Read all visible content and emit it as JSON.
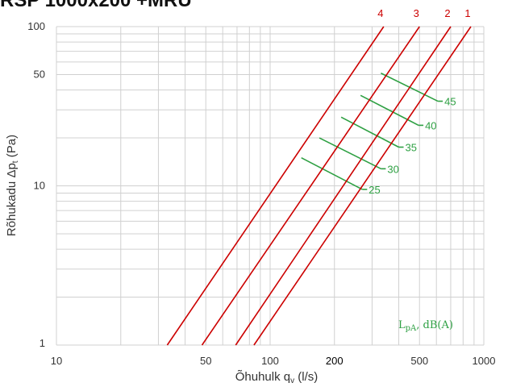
{
  "title": "RSP 1000x200 +MRU",
  "chart_data": {
    "type": "line",
    "xlabel": "Õhuhulk",
    "xlabel_sym": "q",
    "xlabel_sub": "v",
    "xlabel_unit": "(l/s)",
    "ylabel": "Rõhukadu Δp",
    "ylabel_sub": "t",
    "ylabel_unit": "(Pa)",
    "x_scale": "log",
    "y_scale": "log",
    "xlim": [
      10,
      1000
    ],
    "ylim": [
      1,
      100
    ],
    "x_tick_labels": [
      "10",
      "50",
      "100",
      "200",
      "500",
      "1000"
    ],
    "x_tick_values": [
      10,
      50,
      100,
      200,
      500,
      1000
    ],
    "y_tick_labels": [
      "1",
      "10",
      "50",
      "100"
    ],
    "y_tick_values": [
      1,
      10,
      50,
      100
    ],
    "grid": true,
    "line_color": "#cc0000",
    "db_color": "#2ea043",
    "series": [
      {
        "name": "1",
        "points": [
          [
            84,
            1
          ],
          [
            870,
            100
          ]
        ]
      },
      {
        "name": "2",
        "points": [
          [
            69,
            1
          ],
          [
            700,
            100
          ]
        ]
      },
      {
        "name": "3",
        "points": [
          [
            48,
            1
          ],
          [
            500,
            100
          ]
        ]
      },
      {
        "name": "4",
        "points": [
          [
            33,
            1
          ],
          [
            340,
            100
          ]
        ]
      }
    ],
    "sound_levels": [
      {
        "label": "25",
        "points": [
          [
            140,
            15
          ],
          [
            270,
            9.5
          ]
        ]
      },
      {
        "label": "30",
        "points": [
          [
            170,
            20
          ],
          [
            330,
            12.8
          ]
        ]
      },
      {
        "label": "35",
        "points": [
          [
            215,
            27
          ],
          [
            400,
            17.5
          ]
        ]
      },
      {
        "label": "40",
        "points": [
          [
            265,
            37
          ],
          [
            495,
            24
          ]
        ]
      },
      {
        "label": "45",
        "points": [
          [
            330,
            51
          ],
          [
            610,
            34
          ]
        ]
      }
    ],
    "sound_unit_main": "L",
    "sound_unit_sub": "pA",
    "sound_unit_rest": ", dB(A)"
  }
}
